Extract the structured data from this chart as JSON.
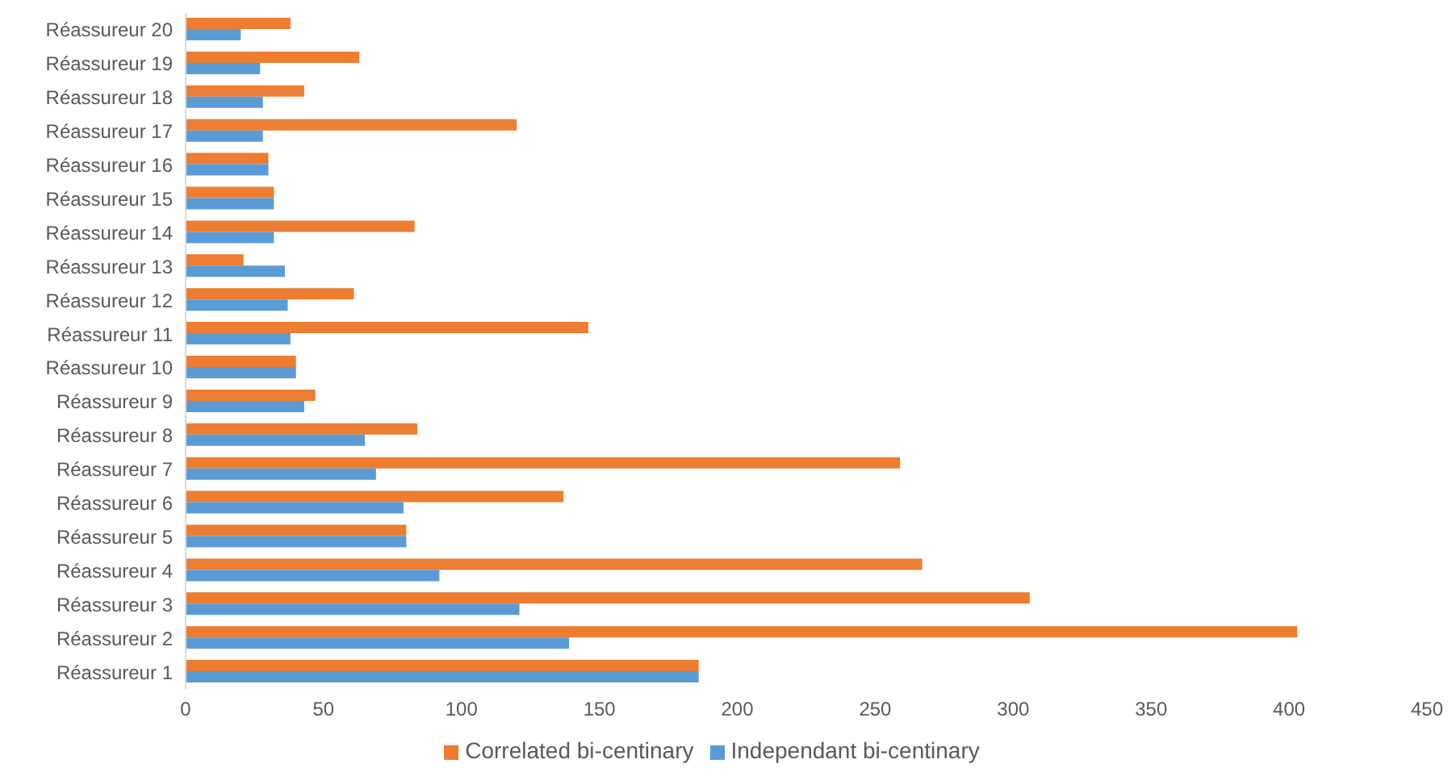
{
  "chart_data": {
    "type": "bar",
    "orientation": "horizontal",
    "categories": [
      "Réassureur 20",
      "Réassureur 19",
      "Réassureur 18",
      "Réassureur 17",
      "Réassureur 16",
      "Réassureur 15",
      "Réassureur 14",
      "Réassureur 13",
      "Réassureur 12",
      "Réassureur 11",
      "Réassureur 10",
      "Réassureur 9",
      "Réassureur 8",
      "Réassureur 7",
      "Réassureur 6",
      "Réassureur 5",
      "Réassureur 4",
      "Réassureur 3",
      "Réassureur 2",
      "Réassureur 1"
    ],
    "series": [
      {
        "name": "Correlated bi-centinary",
        "color": "#ed7d31",
        "values": [
          38,
          63,
          43,
          120,
          30,
          32,
          83,
          21,
          61,
          146,
          40,
          47,
          84,
          259,
          137,
          80,
          267,
          306,
          403,
          186
        ]
      },
      {
        "name": "Independant bi-centinary",
        "color": "#5b9bd5",
        "values": [
          20,
          27,
          28,
          28,
          30,
          32,
          32,
          36,
          37,
          38,
          40,
          43,
          65,
          69,
          79,
          80,
          92,
          121,
          139,
          186
        ]
      }
    ],
    "xlim": [
      0,
      450
    ],
    "xticks": [
      0,
      50,
      100,
      150,
      200,
      250,
      300,
      350,
      400,
      450
    ],
    "grid": false,
    "legend": "bottom"
  }
}
